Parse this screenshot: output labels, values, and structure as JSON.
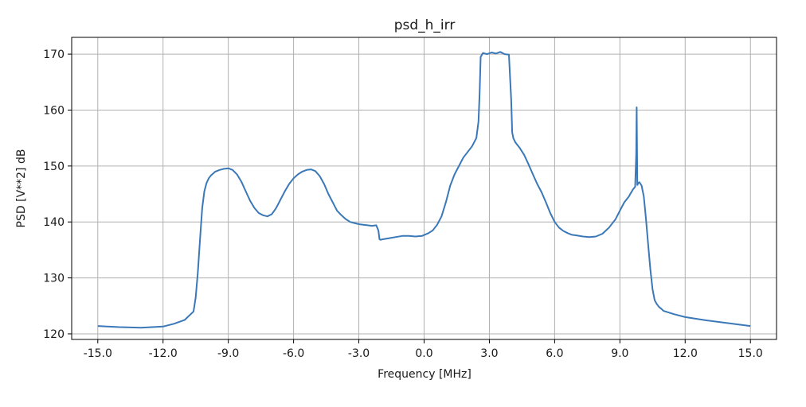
{
  "chart_data": {
    "type": "line",
    "title": "psd_h_irr",
    "xlabel": "Frequency [MHz]",
    "ylabel": "PSD [V**2] dB",
    "xlim": [
      -16.2,
      16.2
    ],
    "ylim": [
      119,
      173
    ],
    "grid": true,
    "x_ticks": [
      -15,
      -12,
      -9,
      -6,
      -3,
      0,
      3,
      6,
      9,
      12,
      15
    ],
    "x_tick_labels": [
      "-15.0",
      "-12.0",
      "-9.0",
      "-6.0",
      "-3.0",
      "0.0",
      "3.0",
      "6.0",
      "9.0",
      "12.0",
      "15.0"
    ],
    "y_ticks": [
      120,
      130,
      140,
      150,
      160,
      170
    ],
    "y_tick_labels": [
      "120",
      "130",
      "140",
      "150",
      "160",
      "170"
    ],
    "series": [
      {
        "color": "#3a78b8",
        "x": [
          -15.0,
          -14.0,
          -13.0,
          -12.0,
          -11.5,
          -11.0,
          -10.6,
          -10.5,
          -10.4,
          -10.3,
          -10.2,
          -10.1,
          -10.0,
          -9.9,
          -9.8,
          -9.6,
          -9.4,
          -9.2,
          -9.0,
          -8.8,
          -8.6,
          -8.4,
          -8.2,
          -8.0,
          -7.8,
          -7.6,
          -7.4,
          -7.2,
          -7.0,
          -6.8,
          -6.6,
          -6.4,
          -6.2,
          -6.0,
          -5.8,
          -5.6,
          -5.4,
          -5.2,
          -5.0,
          -4.8,
          -4.6,
          -4.4,
          -4.2,
          -4.0,
          -3.8,
          -3.6,
          -3.4,
          -3.2,
          -3.0,
          -2.8,
          -2.6,
          -2.4,
          -2.2,
          -2.1,
          -2.05,
          -2.0,
          -1.9,
          -1.6,
          -1.3,
          -1.0,
          -0.7,
          -0.4,
          -0.1,
          0.2,
          0.4,
          0.6,
          0.8,
          1.0,
          1.2,
          1.4,
          1.6,
          1.8,
          2.0,
          2.2,
          2.4,
          2.5,
          2.55,
          2.6,
          2.7,
          2.9,
          3.1,
          3.3,
          3.5,
          3.7,
          3.9,
          4.0,
          4.05,
          4.1,
          4.2,
          4.4,
          4.6,
          4.8,
          5.0,
          5.2,
          5.4,
          5.6,
          5.8,
          6.0,
          6.2,
          6.4,
          6.6,
          6.8,
          7.0,
          7.3,
          7.6,
          7.9,
          8.2,
          8.5,
          8.8,
          9.0,
          9.2,
          9.4,
          9.6,
          9.7,
          9.75,
          9.77,
          9.8,
          9.85,
          9.9,
          10.0,
          10.1,
          10.2,
          10.3,
          10.4,
          10.5,
          10.6,
          10.7,
          10.8,
          10.9,
          11.0,
          11.5,
          12.0,
          13.0,
          14.0,
          15.0
        ],
        "y": [
          121.4,
          121.2,
          121.1,
          121.3,
          121.8,
          122.5,
          124.0,
          126.5,
          131.0,
          137.0,
          142.5,
          145.5,
          147.0,
          147.8,
          148.3,
          149.0,
          149.3,
          149.5,
          149.6,
          149.3,
          148.5,
          147.2,
          145.5,
          143.8,
          142.5,
          141.6,
          141.2,
          141.0,
          141.4,
          142.5,
          144.0,
          145.5,
          146.8,
          147.8,
          148.5,
          149.0,
          149.3,
          149.4,
          149.1,
          148.2,
          146.8,
          145.0,
          143.5,
          142.0,
          141.2,
          140.5,
          140.0,
          139.8,
          139.6,
          139.5,
          139.4,
          139.3,
          139.4,
          138.5,
          136.9,
          136.8,
          136.9,
          137.1,
          137.3,
          137.5,
          137.5,
          137.4,
          137.5,
          138.0,
          138.5,
          139.5,
          141.0,
          143.5,
          146.5,
          148.5,
          150.0,
          151.5,
          152.5,
          153.5,
          155.0,
          158.0,
          163.0,
          169.5,
          170.2,
          170.0,
          170.3,
          170.1,
          170.4,
          170.0,
          169.9,
          162.0,
          156.0,
          155.0,
          154.2,
          153.2,
          152.0,
          150.3,
          148.5,
          146.8,
          145.3,
          143.5,
          141.6,
          140.0,
          139.0,
          138.4,
          138.0,
          137.7,
          137.6,
          137.4,
          137.3,
          137.4,
          137.9,
          139.0,
          140.5,
          142.0,
          143.5,
          144.5,
          145.8,
          146.3,
          152.0,
          160.5,
          146.6,
          147.0,
          147.1,
          146.5,
          144.5,
          140.5,
          136.0,
          131.5,
          128.0,
          126.0,
          125.3,
          124.8,
          124.5,
          124.1,
          123.5,
          123.0,
          122.4,
          121.9,
          121.4
        ]
      }
    ]
  }
}
